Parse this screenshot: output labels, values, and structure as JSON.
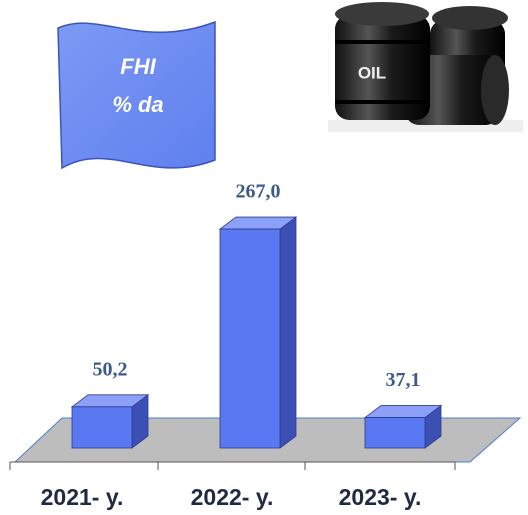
{
  "chart_data": {
    "type": "bar3d",
    "title": "FHI",
    "subtitle": "% da",
    "annotations": [
      "OIL"
    ],
    "categories": [
      "2021- y.",
      "2022- y.",
      "2023- y."
    ],
    "values": [
      50.2,
      267.0,
      37.1
    ],
    "value_labels": [
      "50,2",
      "267,0",
      "37,1"
    ],
    "color": "#5a78f2"
  }
}
